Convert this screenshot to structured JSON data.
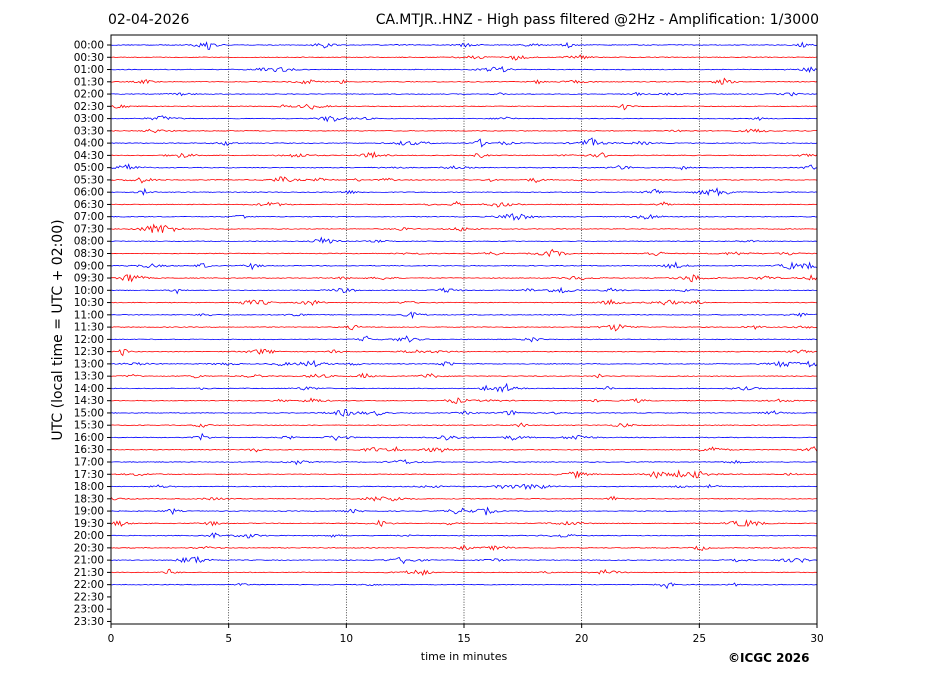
{
  "header": {
    "date": "02-04-2026",
    "title": "CA.MTJR..HNZ - High pass filtered @2Hz - Amplification: 1/3000"
  },
  "footer": {
    "copyright": "©ICGC 2026"
  },
  "chart_data": {
    "type": "line",
    "xlabel": "time in minutes",
    "ylabel": "UTC (local time = UTC + 02:00)",
    "xlim": [
      0,
      30
    ],
    "xticks": [
      0,
      5,
      10,
      15,
      20,
      25,
      30
    ],
    "grid": "vertical dotted lines at 5, 10, 15, 20, 25",
    "trace_colors": [
      "#ff0000",
      "#0000ff"
    ],
    "color_pattern": "alternating in blocks of three traces (blue, red, blue / red, blue, red)",
    "row_labels": [
      "00:00",
      "00:30",
      "01:00",
      "01:30",
      "02:00",
      "02:30",
      "03:00",
      "03:30",
      "04:00",
      "04:30",
      "05:00",
      "05:30",
      "06:00",
      "06:30",
      "07:00",
      "07:30",
      "08:00",
      "08:30",
      "09:00",
      "09:30",
      "10:00",
      "10:30",
      "11:00",
      "11:30",
      "12:00",
      "12:30",
      "13:00",
      "13:30",
      "14:00",
      "14:30",
      "15:00",
      "15:30",
      "16:00",
      "16:30",
      "17:00",
      "17:30",
      "18:00",
      "18:30",
      "19:00",
      "19:30",
      "20:00",
      "20:30",
      "21:00",
      "21:30",
      "22:00",
      "22:30",
      "23:00",
      "23:30"
    ],
    "traces_recorded": 45
  }
}
